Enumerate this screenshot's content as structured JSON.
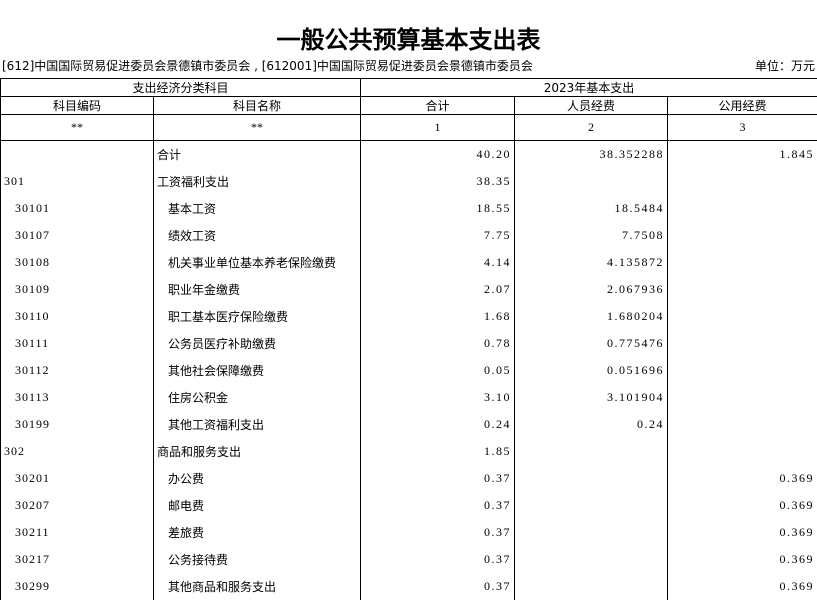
{
  "header": {
    "title": "一般公共预算基本支出表",
    "organization": "[612]中国国际贸易促进委员会景德镇市委员会 , [612001]中国国际贸易促进委员会景德镇市委员会",
    "unit": "单位：万元"
  },
  "table": {
    "group_headers": [
      "支出经济分类科目",
      "2023年基本支出"
    ],
    "columns": [
      "科目编码",
      "科目名称",
      "合计",
      "人员经费",
      "公用经费"
    ],
    "column_numbers": [
      "**",
      "**",
      "1",
      "2",
      "3"
    ],
    "rows": [
      [
        null,
        "合计",
        "40.20",
        "38.352288",
        "1.845"
      ],
      [
        "301",
        "工资福利支出",
        "38.35",
        null,
        null
      ],
      [
        "30101",
        "基本工资",
        "18.55",
        "18.5484",
        null
      ],
      [
        "30107",
        "绩效工资",
        "7.75",
        "7.7508",
        null
      ],
      [
        "30108",
        "机关事业单位基本养老保险缴费",
        "4.14",
        "4.135872",
        null
      ],
      [
        "30109",
        "职业年金缴费",
        "2.07",
        "2.067936",
        null
      ],
      [
        "30110",
        "职工基本医疗保险缴费",
        "1.68",
        "1.680204",
        null
      ],
      [
        "30111",
        "公务员医疗补助缴费",
        "0.78",
        "0.775476",
        null
      ],
      [
        "30112",
        "其他社会保障缴费",
        "0.05",
        "0.051696",
        null
      ],
      [
        "30113",
        "住房公积金",
        "3.10",
        "3.101904",
        null
      ],
      [
        "30199",
        "其他工资福利支出",
        "0.24",
        "0.24",
        null
      ],
      [
        "302",
        "商品和服务支出",
        "1.85",
        null,
        null
      ],
      [
        "30201",
        "办公费",
        "0.37",
        null,
        "0.369"
      ],
      [
        "30207",
        "邮电费",
        "0.37",
        null,
        "0.369"
      ],
      [
        "30211",
        "差旅费",
        "0.37",
        null,
        "0.369"
      ],
      [
        "30217",
        "公务接待费",
        "0.37",
        null,
        "0.369"
      ],
      [
        "30299",
        "其他商品和服务支出",
        "0.37",
        null,
        "0.369"
      ]
    ]
  }
}
